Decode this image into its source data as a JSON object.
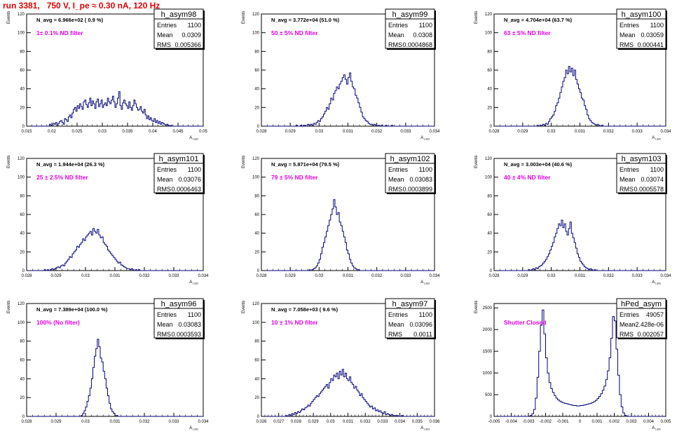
{
  "page_title": "run 3381,   750 V, I_pe ≈ 0.30 nA, 120 Hz",
  "colors": {
    "title": "#e00000",
    "hist": "#00007a",
    "annotation": "#e000e0",
    "axis": "#000000"
  },
  "stats_labels": {
    "entries": "Entries",
    "mean": "Mean",
    "rms": "RMS"
  },
  "chart_data": [
    {
      "type": "bar",
      "name": "h_asym98",
      "ylabel": "Events",
      "xlabel": "A_LED",
      "xlim": [
        0.015,
        0.05
      ],
      "ylim": [
        0,
        120
      ],
      "xticks": [
        "0.015",
        "0.02",
        "0.025",
        "0.03",
        "0.035",
        "0.04",
        "0.045",
        "0.05"
      ],
      "yticks": [
        "0",
        "20",
        "40",
        "60",
        "80",
        "100",
        "120"
      ],
      "navg_text": "N_avg = 6.966e+02 ( 0.9 %)",
      "filter_text": "1± 0.1% ND filter",
      "stats": {
        "entries": "1100",
        "mean": "0.0309",
        "rms": "0.005366"
      },
      "x_range": [
        0.015,
        0.05
      ],
      "values": [
        0,
        0,
        0,
        0,
        0,
        0,
        0,
        0,
        0,
        0,
        0,
        0,
        0,
        0,
        0,
        0,
        0,
        0,
        2,
        1,
        0,
        3,
        2,
        4,
        1,
        3,
        5,
        6,
        4,
        2,
        8,
        7,
        5,
        10,
        12,
        9,
        14,
        18,
        20,
        16,
        22,
        19,
        24,
        21,
        18,
        26,
        28,
        23,
        20,
        25,
        30,
        22,
        27,
        24,
        19,
        26,
        29,
        21,
        24,
        28,
        20,
        23,
        25,
        22,
        30,
        26,
        24,
        28,
        32,
        26,
        20,
        24,
        30,
        37,
        22,
        18,
        25,
        28,
        24,
        22,
        19,
        26,
        20,
        17,
        22,
        28,
        24,
        20,
        17,
        18,
        21,
        16,
        14,
        18,
        12,
        8,
        11,
        7,
        9,
        6,
        5,
        8,
        4,
        6,
        3,
        5,
        2,
        4,
        3,
        2,
        1,
        2,
        1,
        0,
        1,
        0,
        0,
        0,
        0,
        0,
        0,
        0,
        0,
        0,
        0,
        0,
        0,
        0,
        0,
        0,
        0,
        0,
        0,
        0,
        0,
        0,
        0,
        0,
        0,
        0
      ]
    },
    {
      "type": "bar",
      "name": "h_asym99",
      "ylabel": "Events",
      "xlabel": "A_LED",
      "xlim": [
        0.028,
        0.034
      ],
      "ylim": [
        0,
        120
      ],
      "xticks": [
        "0.028",
        "0.029",
        "0.03",
        "0.031",
        "0.032",
        "0.033",
        "0.034"
      ],
      "yticks": [
        "0",
        "20",
        "40",
        "60",
        "80",
        "100",
        "120"
      ],
      "navg_text": "N_avg = 3.772e+04 (51.0 %)",
      "filter_text": "50 ± 5% ND filter",
      "stats": {
        "entries": "1100",
        "mean": "0.0308",
        "rms": "0.0004868"
      },
      "x_range": [
        0.028,
        0.034
      ],
      "values": [
        0,
        0,
        0,
        0,
        0,
        0,
        0,
        0,
        0,
        0,
        0,
        0,
        0,
        0,
        0,
        0,
        0,
        0,
        0,
        0,
        0,
        0,
        0,
        0,
        1,
        0,
        0,
        1,
        0,
        1,
        1,
        0,
        2,
        1,
        2,
        1,
        3,
        2,
        4,
        6,
        5,
        8,
        10,
        13,
        16,
        20,
        18,
        24,
        30,
        28,
        35,
        38,
        42,
        40,
        45,
        48,
        52,
        55,
        50,
        45,
        52,
        57,
        48,
        42,
        40,
        33,
        30,
        25,
        20,
        15,
        10,
        8,
        6,
        5,
        3,
        2,
        2,
        1,
        2,
        1,
        0,
        1,
        0,
        1,
        0,
        0,
        1,
        0,
        0,
        0,
        1,
        0,
        0,
        0,
        0,
        0,
        0,
        0,
        0,
        0,
        0,
        0,
        0,
        0,
        0,
        0,
        0,
        0,
        0,
        0,
        0,
        0,
        0,
        0,
        0,
        0,
        0,
        0,
        0,
        0
      ]
    },
    {
      "type": "bar",
      "name": "h_asym100",
      "ylabel": "Events",
      "xlabel": "A_LED",
      "xlim": [
        0.028,
        0.034
      ],
      "ylim": [
        0,
        120
      ],
      "xticks": [
        "0.028",
        "0.029",
        "0.03",
        "0.031",
        "0.032",
        "0.033",
        "0.034"
      ],
      "yticks": [
        "0",
        "20",
        "40",
        "60",
        "80",
        "100",
        "120"
      ],
      "navg_text": "N_avg = 4.704e+04 (63.7 %)",
      "filter_text": "63 ± 5% ND filter",
      "stats": {
        "entries": "1100",
        "mean": "0.03059",
        "rms": "0.000441"
      },
      "x_range": [
        0.028,
        0.034
      ],
      "values": [
        0,
        0,
        0,
        0,
        0,
        0,
        0,
        0,
        0,
        0,
        0,
        0,
        0,
        0,
        0,
        0,
        0,
        0,
        0,
        0,
        0,
        0,
        0,
        0,
        0,
        0,
        0,
        0,
        0,
        0,
        1,
        0,
        1,
        1,
        2,
        1,
        3,
        2,
        5,
        8,
        10,
        12,
        16,
        22,
        25,
        30,
        36,
        42,
        48,
        52,
        60,
        56,
        64,
        58,
        62,
        54,
        60,
        50,
        45,
        40,
        36,
        30,
        28,
        22,
        18,
        12,
        8,
        6,
        4,
        3,
        2,
        1,
        2,
        1,
        0,
        1,
        0,
        0,
        0,
        0,
        0,
        0,
        0,
        0,
        0,
        0,
        0,
        0,
        0,
        0,
        0,
        0,
        0,
        0,
        0,
        0,
        0,
        0,
        0,
        0,
        0,
        0,
        0,
        0,
        0,
        0,
        0,
        0,
        0,
        0,
        0,
        0,
        0,
        0,
        0,
        0,
        0,
        0,
        0,
        0
      ]
    },
    {
      "type": "bar",
      "name": "h_asym101",
      "ylabel": "Events",
      "xlabel": "A_LED",
      "xlim": [
        0.028,
        0.034
      ],
      "ylim": [
        0,
        120
      ],
      "xticks": [
        "0.028",
        "0.029",
        "0.03",
        "0.031",
        "0.032",
        "0.033",
        "0.034"
      ],
      "yticks": [
        "0",
        "20",
        "40",
        "60",
        "80",
        "100",
        "120"
      ],
      "navg_text": "N_avg = 1.944e+04 (26.3 %)",
      "filter_text": "25 ± 2.5% ND filter",
      "stats": {
        "entries": "1100",
        "mean": "0.03076",
        "rms": "0.0006463"
      },
      "x_range": [
        0.028,
        0.034
      ],
      "values": [
        0,
        0,
        0,
        0,
        0,
        0,
        0,
        0,
        0,
        0,
        0,
        0,
        1,
        0,
        1,
        0,
        1,
        2,
        1,
        2,
        3,
        4,
        3,
        5,
        6,
        5,
        8,
        10,
        12,
        15,
        14,
        18,
        20,
        22,
        26,
        25,
        28,
        30,
        34,
        32,
        36,
        38,
        40,
        42,
        38,
        45,
        42,
        40,
        44,
        38,
        35,
        36,
        30,
        28,
        26,
        22,
        20,
        18,
        16,
        14,
        12,
        10,
        8,
        9,
        6,
        5,
        4,
        3,
        2,
        2,
        1,
        2,
        1,
        0,
        1,
        0,
        1,
        0,
        0,
        0,
        0,
        0,
        0,
        0,
        0,
        0,
        0,
        0,
        0,
        0,
        0,
        0,
        0,
        0,
        0,
        0,
        0,
        0,
        0,
        0,
        0,
        0,
        0,
        0,
        0,
        0,
        0,
        0,
        0,
        0,
        0,
        0,
        0,
        0,
        0,
        0,
        0,
        0,
        0,
        0
      ]
    },
    {
      "type": "bar",
      "name": "h_asym102",
      "ylabel": "Events",
      "xlabel": "A_LED",
      "xlim": [
        0.028,
        0.034
      ],
      "ylim": [
        0,
        120
      ],
      "xticks": [
        "0.028",
        "0.029",
        "0.03",
        "0.031",
        "0.032",
        "0.033",
        "0.034"
      ],
      "yticks": [
        "0",
        "20",
        "40",
        "60",
        "80",
        "100",
        "120"
      ],
      "navg_text": "N_avg = 5.871e+04 (79.5 %)",
      "filter_text": "79 ± 5% ND filter",
      "stats": {
        "entries": "1100",
        "mean": "0.03083",
        "rms": "0.0003899"
      },
      "x_range": [
        0.028,
        0.034
      ],
      "values": [
        0,
        0,
        0,
        0,
        0,
        0,
        0,
        0,
        0,
        0,
        0,
        0,
        0,
        0,
        0,
        0,
        0,
        0,
        0,
        0,
        0,
        0,
        0,
        0,
        0,
        0,
        0,
        0,
        0,
        0,
        0,
        0,
        0,
        1,
        0,
        1,
        2,
        3,
        5,
        8,
        12,
        18,
        25,
        30,
        36,
        42,
        48,
        54,
        60,
        66,
        76,
        68,
        60,
        62,
        52,
        48,
        42,
        36,
        30,
        22,
        18,
        12,
        8,
        5,
        3,
        2,
        1,
        1,
        0,
        0,
        0,
        0,
        0,
        0,
        0,
        0,
        0,
        0,
        0,
        0,
        0,
        0,
        0,
        0,
        0,
        0,
        0,
        0,
        0,
        0,
        0,
        0,
        0,
        0,
        0,
        0,
        0,
        0,
        0,
        0,
        0,
        0,
        0,
        0,
        0,
        0,
        0,
        0,
        0,
        0,
        0,
        0,
        0,
        0,
        0,
        0,
        0,
        0,
        0,
        0
      ]
    },
    {
      "type": "bar",
      "name": "h_asym103",
      "ylabel": "Events",
      "xlabel": "A_LED",
      "xlim": [
        0.028,
        0.034
      ],
      "ylim": [
        0,
        120
      ],
      "xticks": [
        "0.028",
        "0.029",
        "0.03",
        "0.031",
        "0.032",
        "0.033",
        "0.034"
      ],
      "yticks": [
        "0",
        "20",
        "40",
        "60",
        "80",
        "100",
        "120"
      ],
      "navg_text": "N_avg = 3.003e+04 (40.6 %)",
      "filter_text": "40 ± 4% ND filter",
      "stats": {
        "entries": "1100",
        "mean": "0.03074",
        "rms": "0.0005578"
      },
      "x_range": [
        0.028,
        0.034
      ],
      "values": [
        0,
        0,
        0,
        0,
        0,
        0,
        0,
        0,
        0,
        0,
        0,
        0,
        0,
        0,
        0,
        0,
        0,
        0,
        0,
        0,
        0,
        0,
        0,
        0,
        1,
        0,
        1,
        2,
        1,
        3,
        2,
        4,
        5,
        6,
        8,
        10,
        12,
        15,
        18,
        22,
        26,
        30,
        36,
        40,
        45,
        50,
        48,
        54,
        46,
        50,
        42,
        38,
        45,
        52,
        40,
        35,
        30,
        24,
        18,
        14,
        10,
        8,
        6,
        4,
        3,
        2,
        1,
        2,
        1,
        0,
        1,
        0,
        0,
        0,
        0,
        0,
        0,
        0,
        0,
        0,
        0,
        0,
        0,
        0,
        0,
        0,
        0,
        0,
        0,
        0,
        0,
        0,
        0,
        0,
        0,
        0,
        0,
        0,
        0,
        0,
        0,
        0,
        0,
        0,
        0,
        0,
        0,
        0,
        0,
        0,
        0,
        0,
        0,
        0,
        0,
        0,
        0,
        0,
        0,
        0
      ]
    },
    {
      "type": "bar",
      "name": "h_asym96",
      "ylabel": "Events",
      "xlabel": "A_LED",
      "xlim": [
        0.028,
        0.034
      ],
      "ylim": [
        0,
        120
      ],
      "xticks": [
        "0.028",
        "0.029",
        "0.03",
        "0.031",
        "0.032",
        "0.033",
        "0.034"
      ],
      "yticks": [
        "0",
        "20",
        "40",
        "60",
        "80",
        "100",
        "120"
      ],
      "navg_text": "N_avg = 7.389e+04 (100.0 %)",
      "filter_text": "100% (No filter)",
      "stats": {
        "entries": "1100",
        "mean": "0.03083",
        "rms": "0.0003593"
      },
      "x_range": [
        0.028,
        0.034
      ],
      "values": [
        0,
        0,
        0,
        0,
        0,
        0,
        0,
        0,
        0,
        0,
        0,
        0,
        0,
        0,
        0,
        0,
        0,
        0,
        0,
        0,
        0,
        0,
        0,
        0,
        0,
        0,
        0,
        0,
        0,
        0,
        0,
        0,
        0,
        0,
        0,
        0,
        0,
        1,
        3,
        6,
        10,
        16,
        22,
        30,
        40,
        52,
        64,
        72,
        82,
        74,
        62,
        58,
        48,
        40,
        30,
        22,
        14,
        8,
        5,
        3,
        1,
        1,
        0,
        0,
        0,
        0,
        0,
        0,
        0,
        0,
        0,
        0,
        0,
        0,
        0,
        0,
        0,
        0,
        0,
        0,
        0,
        0,
        0,
        0,
        0,
        0,
        0,
        0,
        0,
        0,
        0,
        0,
        0,
        0,
        0,
        0,
        0,
        0,
        0,
        0,
        0,
        0,
        0,
        0,
        0,
        0,
        0,
        0,
        0,
        0,
        0,
        0,
        0,
        0,
        0,
        0,
        0,
        0,
        0,
        0
      ]
    },
    {
      "type": "bar",
      "name": "h_asym97",
      "ylabel": "Events",
      "xlabel": "A_LED",
      "xlim": [
        0.026,
        0.036
      ],
      "ylim": [
        0,
        120
      ],
      "xticks": [
        "0.026",
        "0.027",
        "0.028",
        "0.029",
        "0.03",
        "0.031",
        "0.032",
        "0.033",
        "0.034",
        "0.035",
        "0.036"
      ],
      "yticks": [
        "0",
        "20",
        "40",
        "60",
        "80",
        "100",
        "120"
      ],
      "navg_text": "N_avg = 7.058e+03 ( 9.6 %)",
      "filter_text": "10 ± 1% ND filter",
      "stats": {
        "entries": "1100",
        "mean": "0.03096",
        "rms": "0.0011"
      },
      "x_range": [
        0.026,
        0.036
      ],
      "values": [
        0,
        0,
        0,
        0,
        0,
        0,
        0,
        0,
        0,
        0,
        0,
        0,
        0,
        0,
        0,
        0,
        0,
        1,
        0,
        2,
        1,
        3,
        2,
        4,
        3,
        5,
        4,
        6,
        8,
        7,
        9,
        10,
        12,
        11,
        14,
        16,
        18,
        20,
        22,
        21,
        24,
        26,
        28,
        30,
        32,
        34,
        30,
        36,
        40,
        38,
        44,
        42,
        46,
        40,
        48,
        44,
        50,
        42,
        46,
        40,
        38,
        42,
        36,
        34,
        30,
        32,
        28,
        26,
        22,
        24,
        20,
        18,
        16,
        14,
        12,
        10,
        11,
        8,
        9,
        6,
        7,
        5,
        6,
        4,
        3,
        5,
        2,
        3,
        2,
        1,
        2,
        1,
        1,
        0,
        1,
        0,
        0,
        1,
        0,
        0,
        0,
        0,
        0,
        0,
        0,
        0,
        0,
        0,
        0,
        0,
        0,
        0,
        0,
        0,
        0,
        0,
        0,
        0,
        0,
        0
      ]
    },
    {
      "type": "bar",
      "name": "hPed_asym",
      "ylabel": "Events",
      "xlabel": "A_LED",
      "xlim": [
        -0.005,
        0.005
      ],
      "ylim": [
        0,
        2600
      ],
      "xticks": [
        "-0.005",
        "-0.004",
        "-0.003",
        "-0.002",
        "-0.001",
        "0",
        "0.001",
        "0.002",
        "0.003",
        "0.004",
        "0.005"
      ],
      "yticks": [
        "0",
        "500",
        "1000",
        "1500",
        "2000",
        "2500"
      ],
      "navg_text": "",
      "filter_text": "Shutter Closed",
      "stats": {
        "entries": "49057",
        "mean": "-2.428e-06",
        "rms": "0.002057"
      },
      "x_range": [
        -0.005,
        0.005
      ],
      "values": [
        0,
        0,
        0,
        0,
        0,
        0,
        0,
        0,
        0,
        0,
        0,
        0,
        0,
        0,
        0,
        0,
        0,
        0,
        0,
        0,
        5,
        20,
        60,
        160,
        420,
        900,
        1500,
        2100,
        2450,
        1900,
        1350,
        1000,
        780,
        640,
        550,
        480,
        420,
        380,
        350,
        330,
        310,
        300,
        290,
        280,
        270,
        260,
        250,
        250,
        240,
        240,
        250,
        250,
        260,
        270,
        280,
        290,
        300,
        320,
        340,
        370,
        410,
        460,
        520,
        600,
        700,
        850,
        1050,
        1350,
        1800,
        2300,
        2200,
        1550,
        950,
        500,
        220,
        80,
        25,
        5,
        0,
        0,
        0,
        0,
        0,
        0,
        0,
        0,
        0,
        0,
        0,
        0,
        0,
        0,
        0,
        0,
        0,
        0,
        0,
        0,
        0,
        0
      ]
    }
  ]
}
